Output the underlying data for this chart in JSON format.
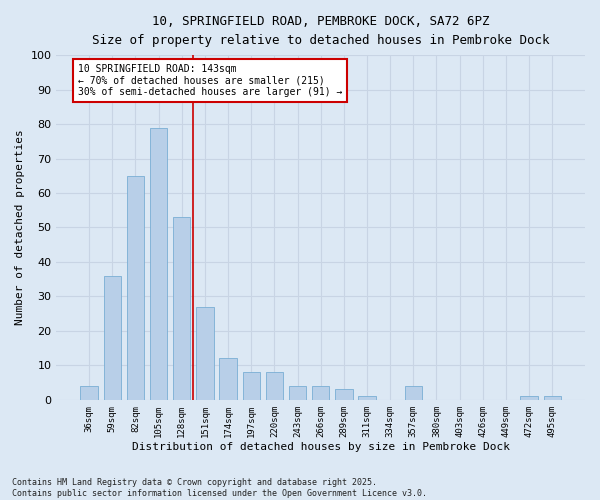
{
  "title1": "10, SPRINGFIELD ROAD, PEMBROKE DOCK, SA72 6PZ",
  "title2": "Size of property relative to detached houses in Pembroke Dock",
  "xlabel": "Distribution of detached houses by size in Pembroke Dock",
  "ylabel": "Number of detached properties",
  "categories": [
    "36sqm",
    "59sqm",
    "82sqm",
    "105sqm",
    "128sqm",
    "151sqm",
    "174sqm",
    "197sqm",
    "220sqm",
    "243sqm",
    "266sqm",
    "289sqm",
    "311sqm",
    "334sqm",
    "357sqm",
    "380sqm",
    "403sqm",
    "426sqm",
    "449sqm",
    "472sqm",
    "495sqm"
  ],
  "values": [
    4,
    36,
    65,
    79,
    53,
    27,
    12,
    8,
    8,
    4,
    4,
    3,
    1,
    0,
    4,
    0,
    0,
    0,
    0,
    1,
    1
  ],
  "bar_color": "#b8cfe8",
  "bar_edge_color": "#7aaed4",
  "bar_width": 0.75,
  "ylim": [
    0,
    100
  ],
  "yticks": [
    0,
    10,
    20,
    30,
    40,
    50,
    60,
    70,
    80,
    90,
    100
  ],
  "grid_color": "#c8d4e4",
  "bg_color": "#dce8f4",
  "fig_bg_color": "#dce8f4",
  "redline_index": 4.5,
  "annotation_text": "10 SPRINGFIELD ROAD: 143sqm\n← 70% of detached houses are smaller (215)\n30% of semi-detached houses are larger (91) →",
  "annotation_box_color": "#ffffff",
  "annotation_box_edge": "#cc0000",
  "footnote": "Contains HM Land Registry data © Crown copyright and database right 2025.\nContains public sector information licensed under the Open Government Licence v3.0."
}
